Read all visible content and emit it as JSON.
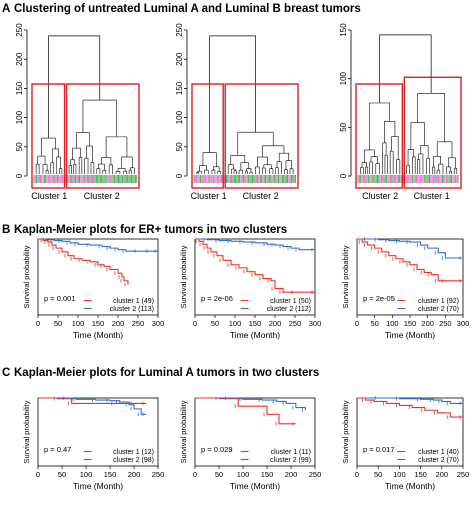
{
  "sections": [
    {
      "letter": "A",
      "title": "Clustering of untreated Luminal A and Luminal B breast tumors"
    },
    {
      "letter": "B",
      "title": "Kaplan-Meier plots for ER+ tumors in two clusters"
    },
    {
      "letter": "C",
      "title": "Kaplan-Meier plots for Luminal A tumors in two clusters"
    }
  ],
  "colors": {
    "cluster1": "#e8332c",
    "cluster2": "#2f6fd6",
    "box": "#d62024",
    "pink": "#e667c4",
    "green": "#3aa84a"
  },
  "chart_data": [
    {
      "type": "dendrogram",
      "panel": "A1",
      "ylim": [
        0,
        250
      ],
      "yticks": [
        0,
        50,
        100,
        150,
        200,
        250
      ],
      "root_height": 240,
      "cluster_labels": [
        "Cluster 1",
        "Cluster 2"
      ],
      "clusters": [
        {
          "name": "Cluster 1",
          "merge_height": 65
        },
        {
          "name": "Cluster 2",
          "merge_height": 130
        }
      ]
    },
    {
      "type": "dendrogram",
      "panel": "A2",
      "ylim": [
        0,
        250
      ],
      "yticks": [
        0,
        50,
        100,
        150,
        200,
        250
      ],
      "root_height": 240,
      "cluster_labels": [
        "Cluster 1",
        "Cluster 2"
      ],
      "clusters": [
        {
          "name": "Cluster 1",
          "merge_height": 40
        },
        {
          "name": "Cluster 2",
          "merge_height": 75
        }
      ]
    },
    {
      "type": "dendrogram",
      "panel": "A3",
      "ylim": [
        0,
        150
      ],
      "yticks": [
        0,
        50,
        100,
        150
      ],
      "root_height": 145,
      "cluster_labels": [
        "Cluster 2",
        "Cluster 1"
      ],
      "clusters": [
        {
          "name": "Cluster 2",
          "merge_height": 75
        },
        {
          "name": "Cluster 1",
          "merge_height": 85
        }
      ]
    },
    {
      "type": "line",
      "panel": "B1",
      "xlabel": "Time (Month)",
      "ylabel": "Survival probability",
      "xlim": [
        0,
        300
      ],
      "xticks": [
        0,
        50,
        100,
        150,
        200,
        250,
        300
      ],
      "ylim": [
        0,
        1
      ],
      "pvalue": "p = 0.001",
      "series": [
        {
          "name": "cluster 1 (49)",
          "x": [
            0,
            15,
            25,
            35,
            45,
            60,
            75,
            90,
            110,
            130,
            150,
            165,
            180,
            200,
            210,
            215,
            225
          ],
          "y": [
            1.0,
            0.98,
            0.96,
            0.92,
            0.88,
            0.83,
            0.78,
            0.74,
            0.72,
            0.7,
            0.66,
            0.64,
            0.6,
            0.55,
            0.5,
            0.45,
            0.4
          ]
        },
        {
          "name": "cluster 2 (113)",
          "x": [
            0,
            20,
            40,
            60,
            80,
            100,
            130,
            160,
            180,
            200,
            220,
            250,
            280,
            300
          ],
          "y": [
            1.0,
            0.99,
            0.98,
            0.97,
            0.95,
            0.93,
            0.92,
            0.9,
            0.88,
            0.86,
            0.84,
            0.84,
            0.84,
            0.84
          ]
        }
      ]
    },
    {
      "type": "line",
      "panel": "B2",
      "xlabel": "Time (Month)",
      "ylabel": "Survival probability",
      "xlim": [
        0,
        300
      ],
      "xticks": [
        0,
        50,
        100,
        150,
        200,
        250,
        300
      ],
      "ylim": [
        0,
        1
      ],
      "pvalue": "p = 2e-06",
      "series": [
        {
          "name": "cluster 1 (50)",
          "x": [
            0,
            10,
            20,
            30,
            40,
            55,
            70,
            90,
            110,
            130,
            150,
            170,
            190,
            200,
            220,
            250,
            300
          ],
          "y": [
            1.0,
            0.97,
            0.93,
            0.88,
            0.83,
            0.78,
            0.72,
            0.66,
            0.62,
            0.57,
            0.53,
            0.48,
            0.45,
            0.35,
            0.3,
            0.3,
            0.3
          ]
        },
        {
          "name": "cluster 2 (112)",
          "x": [
            0,
            30,
            60,
            90,
            120,
            150,
            180,
            200,
            220,
            240,
            260,
            300
          ],
          "y": [
            1.0,
            0.99,
            0.98,
            0.97,
            0.96,
            0.95,
            0.93,
            0.92,
            0.9,
            0.88,
            0.86,
            0.86
          ]
        }
      ]
    },
    {
      "type": "line",
      "panel": "B3",
      "xlabel": "Time (Month)",
      "ylabel": "Survival probability",
      "xlim": [
        0,
        300
      ],
      "xticks": [
        0,
        50,
        100,
        150,
        200,
        250,
        300
      ],
      "ylim": [
        0,
        1
      ],
      "pvalue": "p = 2e-05",
      "series": [
        {
          "name": "cluster 1 (92)",
          "x": [
            0,
            15,
            30,
            50,
            70,
            90,
            110,
            130,
            150,
            170,
            190,
            210,
            230,
            250,
            300
          ],
          "y": [
            1.0,
            0.96,
            0.92,
            0.88,
            0.83,
            0.78,
            0.74,
            0.7,
            0.66,
            0.6,
            0.56,
            0.53,
            0.45,
            0.45,
            0.45
          ]
        },
        {
          "name": "cluster 2 (70)",
          "x": [
            0,
            30,
            60,
            90,
            120,
            150,
            180,
            200,
            230,
            250,
            300
          ],
          "y": [
            1.0,
            1.0,
            0.99,
            0.98,
            0.97,
            0.96,
            0.92,
            0.88,
            0.82,
            0.75,
            0.75
          ]
        }
      ]
    },
    {
      "type": "line",
      "panel": "C1",
      "xlabel": "Time (Month)",
      "ylabel": "Survival probability",
      "xlim": [
        0,
        250
      ],
      "xticks": [
        0,
        50,
        100,
        150,
        200,
        250
      ],
      "ylim": [
        0,
        1
      ],
      "pvalue": "p = 0.47",
      "series": [
        {
          "name": "cluster 1 (12)",
          "x": [
            0,
            60,
            70,
            160,
            200,
            225
          ],
          "y": [
            1.0,
            1.0,
            0.92,
            0.92,
            0.92,
            0.92
          ]
        },
        {
          "name": "cluster 2 (98)",
          "x": [
            0,
            40,
            80,
            120,
            150,
            170,
            190,
            200,
            215,
            225
          ],
          "y": [
            1.0,
            0.99,
            0.98,
            0.97,
            0.96,
            0.94,
            0.9,
            0.84,
            0.76,
            0.76
          ]
        }
      ]
    },
    {
      "type": "line",
      "panel": "C2",
      "xlabel": "Time (Month)",
      "ylabel": "Survival probability",
      "xlim": [
        0,
        250
      ],
      "xticks": [
        0,
        50,
        100,
        150,
        200,
        250
      ],
      "ylim": [
        0,
        1
      ],
      "pvalue": "p = 0.029",
      "series": [
        {
          "name": "cluster 1 (11)",
          "x": [
            0,
            70,
            90,
            150,
            175,
            210
          ],
          "y": [
            1.0,
            1.0,
            0.88,
            0.76,
            0.62,
            0.62
          ]
        },
        {
          "name": "cluster 2 (99)",
          "x": [
            0,
            50,
            100,
            140,
            170,
            190,
            210,
            230
          ],
          "y": [
            1.0,
            0.99,
            0.98,
            0.97,
            0.95,
            0.92,
            0.86,
            0.82
          ]
        }
      ]
    },
    {
      "type": "line",
      "panel": "C3",
      "xlabel": "Time (Month)",
      "ylabel": "Survival probability",
      "xlim": [
        0,
        250
      ],
      "xticks": [
        0,
        50,
        100,
        150,
        200,
        250
      ],
      "ylim": [
        0,
        1
      ],
      "pvalue": "p = 0.017",
      "series": [
        {
          "name": "cluster 1 (40)",
          "x": [
            0,
            20,
            40,
            70,
            100,
            130,
            160,
            190,
            220,
            250
          ],
          "y": [
            1.0,
            0.97,
            0.95,
            0.92,
            0.89,
            0.86,
            0.82,
            0.78,
            0.72,
            0.72
          ]
        },
        {
          "name": "cluster 2 (70)",
          "x": [
            0,
            50,
            100,
            150,
            180,
            200,
            220,
            250
          ],
          "y": [
            1.0,
            1.0,
            0.99,
            0.98,
            0.97,
            0.95,
            0.92,
            0.92
          ]
        }
      ]
    }
  ]
}
